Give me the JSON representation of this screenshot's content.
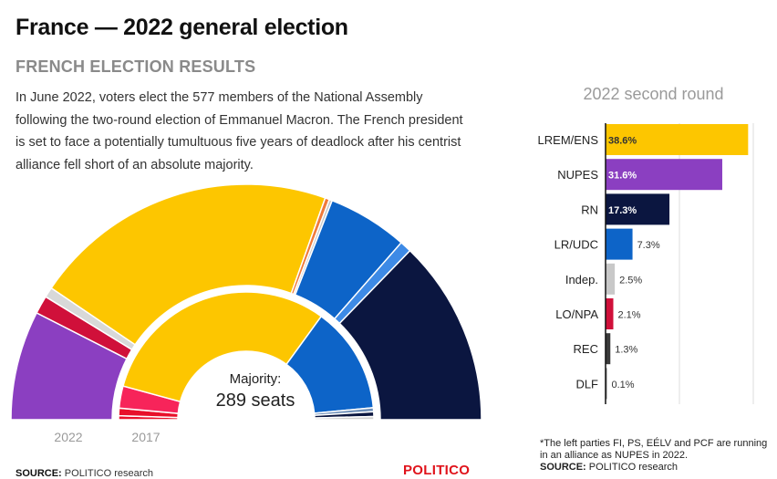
{
  "title": "France — 2022 general election",
  "subtitle": "FRENCH ELECTION RESULTS",
  "intro": "In June 2022, voters elect the 577 members of the National Assembly following the two-round election of Emmanuel Macron. The French president is set to face a potentially tumultuous five years of deadlock after his centrist alliance fell short of an absolute majority.",
  "footnote": "*The left parties FI, PS, EÉLV and PCF are running in an alliance as NUPES in 2022.",
  "source_label": "SOURCE:",
  "source_text": "POLITICO research",
  "brand": "POLITICO",
  "colors": {
    "LREM/ENS": "#fdc600",
    "NUPES": "#8b3fc1",
    "RN": "#0b1640",
    "LR/UDC": "#0d64c8",
    "Indep.": "#c8c8c8",
    "LO/NPA": "#d0103a",
    "REC": "#3a3a3a",
    "DLF": "#7a7a7a"
  },
  "chart_data": [
    {
      "type": "semicircle",
      "title": "",
      "center_label": "Majority:",
      "center_value": "289 seats",
      "rings": [
        {
          "label": "2022",
          "segments": [
            {
              "party": "NUPES",
              "share": 15.0,
              "color": "#8b3fc1"
            },
            {
              "party": "LO/NPA",
              "share": 2.5,
              "color": "#d0103a"
            },
            {
              "party": "Indep.",
              "share": 1.4,
              "color": "#d8d8d8"
            },
            {
              "party": "LREM/ENS",
              "share": 42.0,
              "color": "#fdc600"
            },
            {
              "party": "Other",
              "share": 0.6,
              "color": "#f07a3a"
            },
            {
              "party": "Other",
              "share": 0.4,
              "color": "#c8c8c8"
            },
            {
              "party": "LR/UDC",
              "share": 11.0,
              "color": "#0d64c8"
            },
            {
              "party": "Other",
              "share": 1.6,
              "color": "#3d8ae6"
            },
            {
              "party": "RN",
              "share": 25.5,
              "color": "#0b1640"
            }
          ]
        },
        {
          "label": "2017",
          "segments": [
            {
              "party": "Other",
              "share": 1.0,
              "color": "#e8102a"
            },
            {
              "party": "Other",
              "share": 1.9,
              "color": "#e8102a"
            },
            {
              "party": "Other",
              "share": 5.6,
              "color": "#f7245a"
            },
            {
              "party": "LREM/ENS",
              "share": 61.5,
              "color": "#fdc600"
            },
            {
              "party": "LR/UDC",
              "share": 27.0,
              "color": "#0d64c8"
            },
            {
              "party": "Other",
              "share": 1.0,
              "color": "#6f8fb8"
            },
            {
              "party": "RN",
              "share": 1.2,
              "color": "#0b1640"
            },
            {
              "party": "Other",
              "share": 0.8,
              "color": "#cfcfcf"
            }
          ]
        }
      ]
    },
    {
      "type": "bar",
      "orientation": "horizontal",
      "title": "2022 second round",
      "categories": [
        "LREM/ENS",
        "NUPES",
        "RN",
        "LR/UDC",
        "Indep.",
        "LO/NPA",
        "REC",
        "DLF"
      ],
      "values": [
        38.6,
        31.6,
        17.3,
        7.3,
        2.5,
        2.1,
        1.3,
        0.1
      ],
      "labels": [
        "38.6%",
        "31.6%",
        "17.3%",
        "7.3%",
        "2.5%",
        "2.1%",
        "1.3%",
        "0.1%"
      ],
      "xlim": [
        0,
        40
      ],
      "grid": true
    }
  ]
}
